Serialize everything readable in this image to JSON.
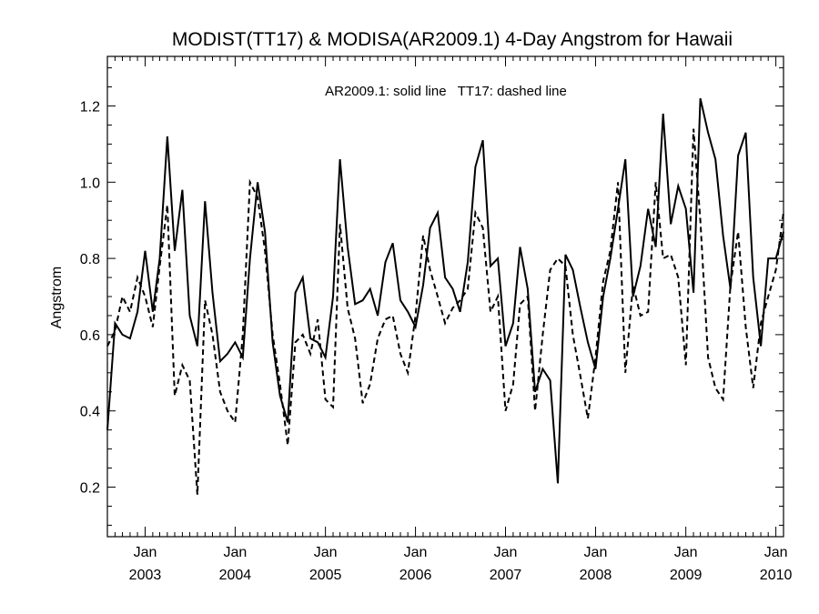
{
  "chart_data": {
    "type": "line",
    "title": "MODIST(TT17) & MODISA(AR2009.1) 4-Day Angstrom for Hawaii",
    "annotation": "AR2009.1: solid line   TT17: dashed line",
    "xlabel": "",
    "ylabel": "Angstrom",
    "x_range": [
      "2002-08-01",
      "2010-02-01"
    ],
    "ylim": [
      0.07,
      1.33
    ],
    "y_ticks": [
      0.2,
      0.4,
      0.6,
      0.8,
      1.0,
      1.2
    ],
    "y_tick_labels": [
      "0.2",
      "0.4",
      "0.6",
      "0.8",
      "1.0",
      "1.2"
    ],
    "x_ticks": [
      {
        "date": "2003-01-01",
        "month": "Jan",
        "year": "2003"
      },
      {
        "date": "2004-01-01",
        "month": "Jan",
        "year": "2004"
      },
      {
        "date": "2005-01-01",
        "month": "Jan",
        "year": "2005"
      },
      {
        "date": "2006-01-01",
        "month": "Jan",
        "year": "2006"
      },
      {
        "date": "2007-01-01",
        "month": "Jan",
        "year": "2007"
      },
      {
        "date": "2008-01-01",
        "month": "Jan",
        "year": "2008"
      },
      {
        "date": "2009-01-01",
        "month": "Jan",
        "year": "2009"
      },
      {
        "date": "2010-01-01",
        "month": "Jan",
        "year": "2010"
      }
    ],
    "grid": false,
    "series": [
      {
        "name": "AR2009.1",
        "style": "solid",
        "color": "#000000",
        "points": [
          [
            "2002-08-01",
            0.35
          ],
          [
            "2002-09-01",
            0.63
          ],
          [
            "2002-10-01",
            0.6
          ],
          [
            "2002-11-01",
            0.59
          ],
          [
            "2002-12-01",
            0.66
          ],
          [
            "2003-01-01",
            0.82
          ],
          [
            "2003-02-01",
            0.66
          ],
          [
            "2003-03-01",
            0.8
          ],
          [
            "2003-04-01",
            1.12
          ],
          [
            "2003-05-01",
            0.82
          ],
          [
            "2003-06-01",
            0.98
          ],
          [
            "2003-07-01",
            0.65
          ],
          [
            "2003-08-01",
            0.57
          ],
          [
            "2003-09-01",
            0.95
          ],
          [
            "2003-10-01",
            0.71
          ],
          [
            "2003-11-01",
            0.53
          ],
          [
            "2003-12-01",
            0.55
          ],
          [
            "2004-01-01",
            0.58
          ],
          [
            "2004-02-01",
            0.54
          ],
          [
            "2004-03-01",
            0.8
          ],
          [
            "2004-04-01",
            1.0
          ],
          [
            "2004-05-01",
            0.87
          ],
          [
            "2004-06-01",
            0.58
          ],
          [
            "2004-07-01",
            0.44
          ],
          [
            "2004-08-01",
            0.37
          ],
          [
            "2004-09-01",
            0.71
          ],
          [
            "2004-10-01",
            0.75
          ],
          [
            "2004-11-01",
            0.59
          ],
          [
            "2004-12-01",
            0.58
          ],
          [
            "2005-01-01",
            0.54
          ],
          [
            "2005-02-01",
            0.7
          ],
          [
            "2005-03-01",
            1.06
          ],
          [
            "2005-04-01",
            0.83
          ],
          [
            "2005-05-01",
            0.68
          ],
          [
            "2005-06-01",
            0.69
          ],
          [
            "2005-07-01",
            0.72
          ],
          [
            "2005-08-01",
            0.65
          ],
          [
            "2005-09-01",
            0.79
          ],
          [
            "2005-10-01",
            0.84
          ],
          [
            "2005-11-01",
            0.69
          ],
          [
            "2005-12-01",
            0.66
          ],
          [
            "2006-01-01",
            0.62
          ],
          [
            "2006-02-01",
            0.73
          ],
          [
            "2006-03-01",
            0.88
          ],
          [
            "2006-04-01",
            0.92
          ],
          [
            "2006-05-01",
            0.75
          ],
          [
            "2006-06-01",
            0.72
          ],
          [
            "2006-07-01",
            0.66
          ],
          [
            "2006-08-01",
            0.79
          ],
          [
            "2006-09-01",
            1.04
          ],
          [
            "2006-10-01",
            1.11
          ],
          [
            "2006-11-01",
            0.78
          ],
          [
            "2006-12-01",
            0.8
          ],
          [
            "2007-01-01",
            0.57
          ],
          [
            "2007-02-01",
            0.63
          ],
          [
            "2007-03-01",
            0.83
          ],
          [
            "2007-04-01",
            0.72
          ],
          [
            "2007-05-01",
            0.45
          ],
          [
            "2007-06-01",
            0.51
          ],
          [
            "2007-07-01",
            0.48
          ],
          [
            "2007-08-01",
            0.21
          ],
          [
            "2007-09-01",
            0.81
          ],
          [
            "2007-10-01",
            0.77
          ],
          [
            "2007-11-01",
            0.67
          ],
          [
            "2007-12-01",
            0.58
          ],
          [
            "2008-01-01",
            0.51
          ],
          [
            "2008-02-01",
            0.7
          ],
          [
            "2008-03-01",
            0.8
          ],
          [
            "2008-04-01",
            0.93
          ],
          [
            "2008-05-01",
            1.06
          ],
          [
            "2008-06-01",
            0.7
          ],
          [
            "2008-07-01",
            0.78
          ],
          [
            "2008-08-01",
            0.93
          ],
          [
            "2008-09-01",
            0.83
          ],
          [
            "2008-10-01",
            1.18
          ],
          [
            "2008-11-01",
            0.89
          ],
          [
            "2008-12-01",
            0.99
          ],
          [
            "2009-01-01",
            0.93
          ],
          [
            "2009-02-01",
            0.71
          ],
          [
            "2009-03-01",
            1.22
          ],
          [
            "2009-04-01",
            1.13
          ],
          [
            "2009-05-01",
            1.06
          ],
          [
            "2009-06-01",
            0.86
          ],
          [
            "2009-07-01",
            0.72
          ],
          [
            "2009-08-01",
            1.07
          ],
          [
            "2009-09-01",
            1.13
          ],
          [
            "2009-10-01",
            0.75
          ],
          [
            "2009-11-01",
            0.57
          ],
          [
            "2009-12-01",
            0.8
          ],
          [
            "2010-01-01",
            0.8
          ],
          [
            "2010-02-01",
            0.87
          ]
        ]
      },
      {
        "name": "TT17",
        "style": "dashed",
        "color": "#000000",
        "points": [
          [
            "2002-08-01",
            0.57
          ],
          [
            "2002-09-01",
            0.61
          ],
          [
            "2002-10-01",
            0.7
          ],
          [
            "2002-11-01",
            0.66
          ],
          [
            "2002-12-01",
            0.75
          ],
          [
            "2003-01-01",
            0.7
          ],
          [
            "2003-02-01",
            0.62
          ],
          [
            "2003-03-01",
            0.78
          ],
          [
            "2003-04-01",
            0.94
          ],
          [
            "2003-05-01",
            0.44
          ],
          [
            "2003-06-01",
            0.52
          ],
          [
            "2003-07-01",
            0.48
          ],
          [
            "2003-08-01",
            0.18
          ],
          [
            "2003-09-01",
            0.69
          ],
          [
            "2003-10-01",
            0.6
          ],
          [
            "2003-11-01",
            0.45
          ],
          [
            "2003-12-01",
            0.4
          ],
          [
            "2004-01-01",
            0.37
          ],
          [
            "2004-02-01",
            0.6
          ],
          [
            "2004-03-01",
            1.0
          ],
          [
            "2004-04-01",
            0.96
          ],
          [
            "2004-05-01",
            0.82
          ],
          [
            "2004-06-01",
            0.6
          ],
          [
            "2004-07-01",
            0.47
          ],
          [
            "2004-08-01",
            0.31
          ],
          [
            "2004-09-01",
            0.58
          ],
          [
            "2004-10-01",
            0.6
          ],
          [
            "2004-11-01",
            0.55
          ],
          [
            "2004-12-01",
            0.64
          ],
          [
            "2005-01-01",
            0.43
          ],
          [
            "2005-02-01",
            0.41
          ],
          [
            "2005-03-01",
            0.89
          ],
          [
            "2005-04-01",
            0.67
          ],
          [
            "2005-05-01",
            0.59
          ],
          [
            "2005-06-01",
            0.42
          ],
          [
            "2005-07-01",
            0.47
          ],
          [
            "2005-08-01",
            0.59
          ],
          [
            "2005-09-01",
            0.64
          ],
          [
            "2005-10-01",
            0.65
          ],
          [
            "2005-11-01",
            0.55
          ],
          [
            "2005-12-01",
            0.5
          ],
          [
            "2006-01-01",
            0.65
          ],
          [
            "2006-02-01",
            0.86
          ],
          [
            "2006-03-01",
            0.77
          ],
          [
            "2006-04-01",
            0.7
          ],
          [
            "2006-05-01",
            0.63
          ],
          [
            "2006-06-01",
            0.67
          ],
          [
            "2006-07-01",
            0.69
          ],
          [
            "2006-08-01",
            0.72
          ],
          [
            "2006-09-01",
            0.92
          ],
          [
            "2006-10-01",
            0.88
          ],
          [
            "2006-11-01",
            0.66
          ],
          [
            "2006-12-01",
            0.7
          ],
          [
            "2007-01-01",
            0.4
          ],
          [
            "2007-02-01",
            0.47
          ],
          [
            "2007-03-01",
            0.68
          ],
          [
            "2007-04-01",
            0.7
          ],
          [
            "2007-05-01",
            0.4
          ],
          [
            "2007-06-01",
            0.6
          ],
          [
            "2007-07-01",
            0.77
          ],
          [
            "2007-08-01",
            0.8
          ],
          [
            "2007-09-01",
            0.78
          ],
          [
            "2007-10-01",
            0.6
          ],
          [
            "2007-11-01",
            0.49
          ],
          [
            "2007-12-01",
            0.38
          ],
          [
            "2008-01-01",
            0.54
          ],
          [
            "2008-02-01",
            0.74
          ],
          [
            "2008-03-01",
            0.82
          ],
          [
            "2008-04-01",
            1.0
          ],
          [
            "2008-05-01",
            0.5
          ],
          [
            "2008-06-01",
            0.73
          ],
          [
            "2008-07-01",
            0.65
          ],
          [
            "2008-08-01",
            0.66
          ],
          [
            "2008-09-01",
            1.0
          ],
          [
            "2008-10-01",
            0.8
          ],
          [
            "2008-11-01",
            0.81
          ],
          [
            "2008-12-01",
            0.75
          ],
          [
            "2009-01-01",
            0.52
          ],
          [
            "2009-02-01",
            1.14
          ],
          [
            "2009-03-01",
            0.9
          ],
          [
            "2009-04-01",
            0.54
          ],
          [
            "2009-05-01",
            0.46
          ],
          [
            "2009-06-01",
            0.43
          ],
          [
            "2009-07-01",
            0.73
          ],
          [
            "2009-08-01",
            0.87
          ],
          [
            "2009-09-01",
            0.62
          ],
          [
            "2009-10-01",
            0.46
          ],
          [
            "2009-11-01",
            0.63
          ],
          [
            "2009-12-01",
            0.7
          ],
          [
            "2010-01-01",
            0.77
          ],
          [
            "2010-02-01",
            0.92
          ]
        ]
      }
    ]
  }
}
